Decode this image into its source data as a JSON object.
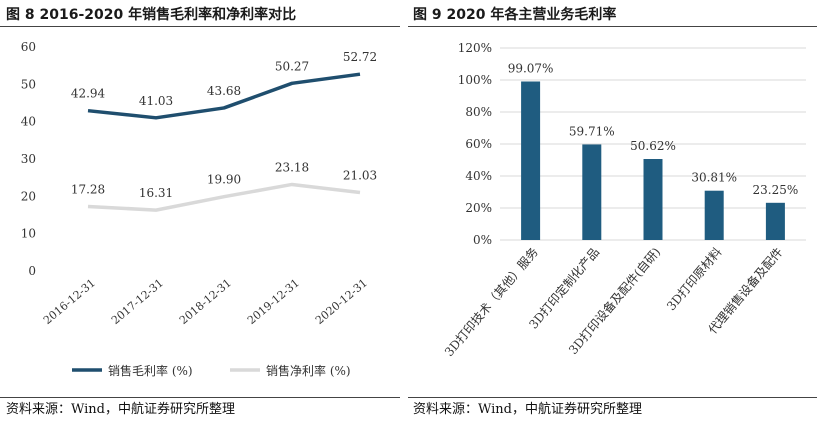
{
  "left": {
    "title": "图 8 2016-2020 年销售毛利率和净利率对比",
    "source": "资料来源：Wind，中航证券研究所整理"
  },
  "right": {
    "title": "图 9 2020 年各主营业务毛利率",
    "source": "资料来源：Wind，中航证券研究所整理"
  },
  "chart_data": [
    {
      "type": "line",
      "title": "2016-2020 年销售毛利率和净利率对比",
      "categories": [
        "2016-12-31",
        "2017-12-31",
        "2018-12-31",
        "2019-12-31",
        "2020-12-31"
      ],
      "series": [
        {
          "name": "销售毛利率 (%)",
          "values": [
            42.94,
            41.03,
            43.68,
            50.27,
            52.72
          ],
          "color": "#1f4e6e",
          "labels": [
            "42.94",
            "41.03",
            "43.68",
            "50.27",
            "52.72"
          ]
        },
        {
          "name": "销售净利率 (%)",
          "values": [
            17.28,
            16.31,
            19.9,
            23.18,
            21.03
          ],
          "color": "#d9d9d9",
          "labels": [
            "17.28",
            "16.31",
            "19.90",
            "23.18",
            "21.03"
          ]
        }
      ],
      "yticks": [
        "0",
        "10",
        "20",
        "30",
        "40",
        "50",
        "60"
      ],
      "ylim": [
        0,
        60
      ],
      "legend": "bottom-left",
      "grid": false
    },
    {
      "type": "bar",
      "title": "2020 年各主营业务毛利率",
      "categories": [
        "3D打印技术（其他）服务",
        "3D打印定制化产品",
        "3D打印设备及配件(自研)",
        "3D打印原材料",
        "代理销售设备及配件"
      ],
      "values": [
        99.07,
        59.71,
        50.62,
        30.81,
        23.25
      ],
      "labels": [
        "99.07%",
        "59.71%",
        "50.62%",
        "30.81%",
        "23.25%"
      ],
      "color": "#1f5c80",
      "yticks": [
        "0%",
        "20%",
        "40%",
        "60%",
        "80%",
        "100%",
        "120%"
      ],
      "ylim": [
        0,
        120
      ],
      "grid": true
    }
  ]
}
